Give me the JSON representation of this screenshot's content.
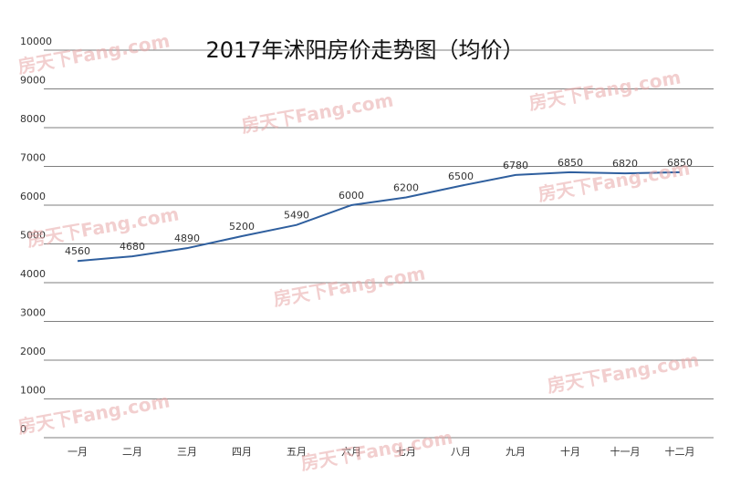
{
  "chart_data": {
    "type": "line",
    "title": "2017年沭阳房价走势图（均价）",
    "categories": [
      "一月",
      "二月",
      "三月",
      "四月",
      "五月",
      "六月",
      "七月",
      "八月",
      "九月",
      "十月",
      "十一月",
      "十二月"
    ],
    "series": [
      {
        "name": "均价",
        "color": "#2f5f9e",
        "values": [
          4560,
          4680,
          4890,
          5200,
          5490,
          6000,
          6200,
          6500,
          6780,
          6850,
          6820,
          6850
        ]
      }
    ],
    "ylim": [
      0,
      10000
    ],
    "yticks": [
      0,
      1000,
      2000,
      3000,
      4000,
      5000,
      6000,
      7000,
      8000,
      9000,
      10000
    ],
    "grid": true,
    "watermark": "房天下Fang.com"
  }
}
